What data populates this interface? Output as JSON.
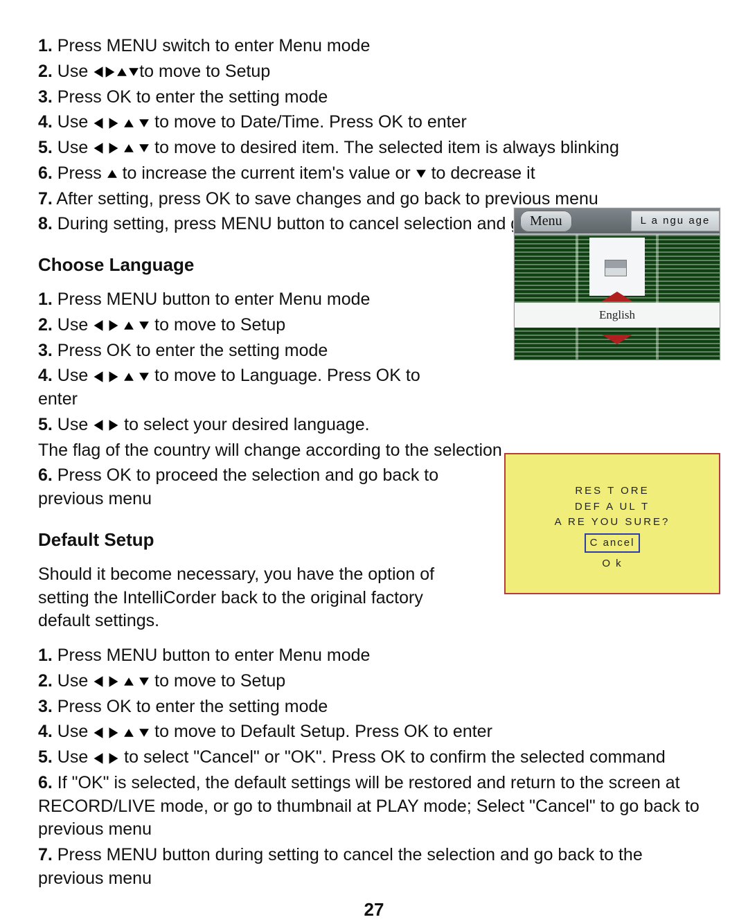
{
  "section1": {
    "steps": [
      {
        "n": "1.",
        "pre": "Press MENU switch to enter Menu mode",
        "arrows": "",
        "post": ""
      },
      {
        "n": "2.",
        "pre": "Use",
        "arrows": "lrud_tight",
        "post": "to move to Setup"
      },
      {
        "n": "3.",
        "pre": "Press OK to enter the setting mode",
        "arrows": "",
        "post": ""
      },
      {
        "n": "4.",
        "pre": "Use",
        "arrows": "lrud",
        "post": " to move to Date/Time.  Press OK to enter"
      },
      {
        "n": "5.",
        "pre": "Use",
        "arrows": "lrud",
        "post": " to move to desired item. The selected item is always blinking"
      },
      {
        "n": "6.",
        "pre": "Press ",
        "arrows": "up",
        "post": " to increase the current item's value or ",
        "arrows2": "down",
        "post2": " to decrease it"
      },
      {
        "n": "7.",
        "pre": "After setting, press OK to save changes and go back to previous menu",
        "arrows": "",
        "post": ""
      },
      {
        "n": "8.",
        "pre": "During setting, press MENU button to cancel selection and go back to previous menu",
        "arrows": "",
        "post": ""
      }
    ]
  },
  "section2": {
    "title": "Choose Language",
    "steps": [
      {
        "n": "1.",
        "pre": "Press MENU button to enter Menu mode",
        "arrows": "",
        "post": ""
      },
      {
        "n": "2.",
        "pre": "Use",
        "arrows": "lrud",
        "post": " to move to Setup"
      },
      {
        "n": "3.",
        "pre": "Press OK to enter the setting mode",
        "arrows": "",
        "post": ""
      },
      {
        "n": "4.",
        "pre": "Use",
        "arrows": "lrud",
        "post": " to move to Language.  Press OK to enter",
        "wrap": true
      },
      {
        "n": "5.",
        "pre": "Use",
        "arrows": "lr",
        "post": " to select your desired language.",
        "full": true,
        "extra": "The flag of the country will change according to the selection"
      },
      {
        "n": "6.",
        "pre": "Press OK to proceed the selection and go back to previous menu",
        "arrows": "",
        "post": "",
        "wrap": true
      }
    ]
  },
  "section3": {
    "title": "Default Setup",
    "intro": "Should it become necessary, you have the option of setting the IntelliCorder back to the original factory default settings.",
    "steps": [
      {
        "n": "1.",
        "pre": "Press MENU button to enter Menu mode",
        "arrows": "",
        "post": ""
      },
      {
        "n": "2.",
        "pre": "Use",
        "arrows": "lrud",
        "post": " to move to Setup"
      },
      {
        "n": "3.",
        "pre": "Press OK to enter the setting mode",
        "arrows": "",
        "post": ""
      },
      {
        "n": "4.",
        "pre": "Use",
        "arrows": "lrud",
        "post": " to move to Default Setup.  Press OK to enter",
        "full": true
      },
      {
        "n": "5.",
        "pre": "Use",
        "arrows": "lr",
        "post": " to select \"Cancel\" or \"OK\".  Press OK to confirm the selected command",
        "full": true
      },
      {
        "n": "6.",
        "pre": "If \"OK\" is selected, the default settings will be restored and return to the screen at RECORD/LIVE mode, or go to thumbnail at PLAY mode; Select \"Cancel\" to go back to previous menu",
        "arrows": "",
        "post": "",
        "full": true
      },
      {
        "n": "7.",
        "pre": "Press MENU button during setting to cancel the selection and go back to the previous menu",
        "arrows": "",
        "post": "",
        "full": true
      }
    ]
  },
  "langFig": {
    "menuLabel": "Menu",
    "tabLabel": "L a ngu age",
    "selected": "English"
  },
  "defFig": {
    "line1": "RES   T ORE",
    "line2": "DEF  A UL  T",
    "line3": "A RE   YOU   SURE?",
    "cancel": "C ancel",
    "ok": "O k"
  },
  "pageNumber": "27",
  "colors": {
    "arrow": "#000000",
    "figBorder": "#b43c3c",
    "figBg": "#f0ed7a",
    "cancelBorder": "#2c3da8",
    "langRed": "#b02020"
  }
}
